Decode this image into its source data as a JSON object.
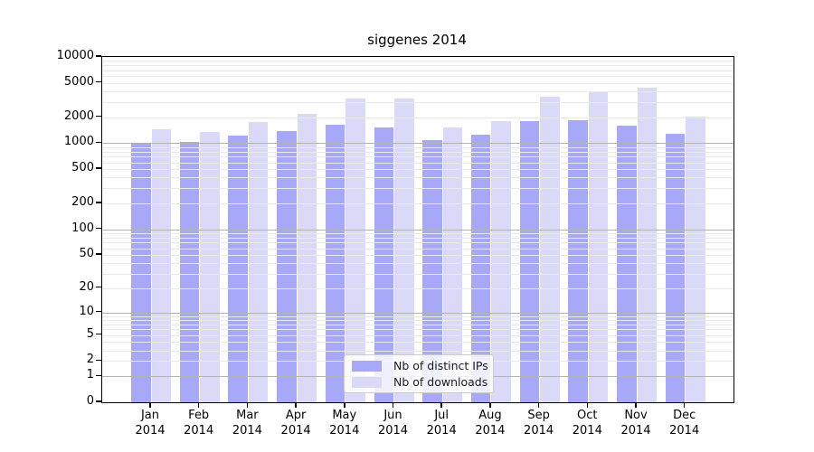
{
  "chart_data": {
    "type": "bar",
    "title": "siggenes 2014",
    "categories": [
      "Jan",
      "Feb",
      "Mar",
      "Apr",
      "May",
      "Jun",
      "Jul",
      "Aug",
      "Sep",
      "Oct",
      "Nov",
      "Dec"
    ],
    "year": "2014",
    "series": [
      {
        "name": "Nb of distinct IPs",
        "color": "#a8a8f8",
        "values": [
          1005,
          1040,
          1230,
          1390,
          1630,
          1540,
          1090,
          1250,
          1800,
          1860,
          1590,
          1290
        ]
      },
      {
        "name": "Nb of downloads",
        "color": "#dadaf8",
        "values": [
          1440,
          1340,
          1770,
          2170,
          3320,
          3280,
          1520,
          1820,
          3460,
          3900,
          4440,
          2020
        ]
      }
    ],
    "y_axis": {
      "scale": "log1p",
      "range": [
        0,
        10000
      ],
      "ticks": [
        "10000",
        "5000",
        "2000",
        "1000",
        "500",
        "200",
        "100",
        "50",
        "20",
        "10",
        "5",
        "2",
        "1",
        "0"
      ],
      "major_gridlines": [
        1,
        10,
        100,
        1000
      ],
      "grid": true
    },
    "legend": {
      "position": "inside-bottom-center"
    }
  },
  "style": {
    "grid_minor": "#e9e9e9",
    "grid_major": "#b3b3b3",
    "axis_color": "#000000",
    "bar_ips": "#a8a8f8",
    "bar_downloads": "#dadaf8",
    "background": "#ffffff"
  }
}
